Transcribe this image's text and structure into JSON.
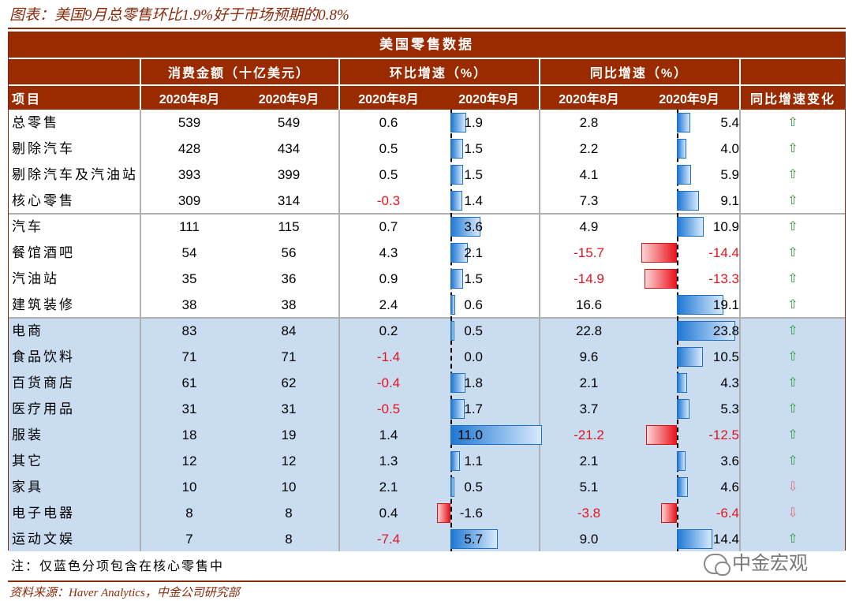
{
  "figure_title": "图表：美国9月总零售环比1.9%好于市场预期的0.8%",
  "table": {
    "main_header": "美国零售数据",
    "group_headers": {
      "amount": "消费金额（十亿美元）",
      "mom": "环比增速（%）",
      "yoy": "同比增速（%）"
    },
    "col_headers": {
      "item": "项目",
      "amt_aug": "2020年8月",
      "amt_sep": "2020年9月",
      "mom_aug": "2020年8月",
      "mom_sep": "2020年9月",
      "yoy_aug": "2020年8月",
      "yoy_sep": "2020年9月",
      "yoy_change": "同比增速变化"
    },
    "rows": [
      {
        "item": "总零售",
        "amt_aug": "539",
        "amt_sep": "549",
        "mom_aug": "0.6",
        "mom_sep": "1.9",
        "yoy_aug": "2.8",
        "yoy_sep": "5.4",
        "change": "up"
      },
      {
        "item": "剔除汽车",
        "amt_aug": "428",
        "amt_sep": "434",
        "mom_aug": "0.5",
        "mom_sep": "1.5",
        "yoy_aug": "2.2",
        "yoy_sep": "4.0",
        "change": "up"
      },
      {
        "item": "剔除汽车及汽油站",
        "amt_aug": "393",
        "amt_sep": "399",
        "mom_aug": "0.5",
        "mom_sep": "1.5",
        "yoy_aug": "4.1",
        "yoy_sep": "5.9",
        "change": "up"
      },
      {
        "item": "核心零售",
        "amt_aug": "309",
        "amt_sep": "314",
        "mom_aug": "-0.3",
        "mom_sep": "1.4",
        "yoy_aug": "7.3",
        "yoy_sep": "9.1",
        "change": "up"
      },
      {
        "item": "汽车",
        "amt_aug": "111",
        "amt_sep": "115",
        "mom_aug": "0.7",
        "mom_sep": "3.6",
        "yoy_aug": "4.9",
        "yoy_sep": "10.9",
        "change": "up"
      },
      {
        "item": "餐馆酒吧",
        "amt_aug": "54",
        "amt_sep": "56",
        "mom_aug": "4.3",
        "mom_sep": "2.1",
        "yoy_aug": "-15.7",
        "yoy_sep": "-14.4",
        "change": "up"
      },
      {
        "item": "汽油站",
        "amt_aug": "35",
        "amt_sep": "36",
        "mom_aug": "0.9",
        "mom_sep": "1.5",
        "yoy_aug": "-14.9",
        "yoy_sep": "-13.3",
        "change": "up"
      },
      {
        "item": "建筑装修",
        "amt_aug": "38",
        "amt_sep": "38",
        "mom_aug": "2.4",
        "mom_sep": "0.6",
        "yoy_aug": "16.6",
        "yoy_sep": "19.1",
        "change": "up"
      },
      {
        "item": "电商",
        "amt_aug": "83",
        "amt_sep": "84",
        "mom_aug": "0.2",
        "mom_sep": "0.5",
        "yoy_aug": "22.8",
        "yoy_sep": "23.8",
        "change": "up"
      },
      {
        "item": "食品饮料",
        "amt_aug": "71",
        "amt_sep": "71",
        "mom_aug": "-1.4",
        "mom_sep": "0.0",
        "yoy_aug": "9.6",
        "yoy_sep": "10.5",
        "change": "up"
      },
      {
        "item": "百货商店",
        "amt_aug": "61",
        "amt_sep": "62",
        "mom_aug": "-0.4",
        "mom_sep": "1.8",
        "yoy_aug": "2.1",
        "yoy_sep": "4.3",
        "change": "up"
      },
      {
        "item": "医疗用品",
        "amt_aug": "31",
        "amt_sep": "31",
        "mom_aug": "-0.5",
        "mom_sep": "1.7",
        "yoy_aug": "3.7",
        "yoy_sep": "5.3",
        "change": "up"
      },
      {
        "item": "服装",
        "amt_aug": "18",
        "amt_sep": "19",
        "mom_aug": "1.4",
        "mom_sep": "11.0",
        "yoy_aug": "-21.2",
        "yoy_sep": "-12.5",
        "change": "up"
      },
      {
        "item": "其它",
        "amt_aug": "12",
        "amt_sep": "12",
        "mom_aug": "1.3",
        "mom_sep": "1.1",
        "yoy_aug": "2.1",
        "yoy_sep": "3.6",
        "change": "up"
      },
      {
        "item": "家具",
        "amt_aug": "10",
        "amt_sep": "10",
        "mom_aug": "2.1",
        "mom_sep": "0.5",
        "yoy_aug": "5.1",
        "yoy_sep": "4.6",
        "change": "down"
      },
      {
        "item": "电子电器",
        "amt_aug": "8",
        "amt_sep": "8",
        "mom_aug": "0.4",
        "mom_sep": "-1.6",
        "yoy_aug": "-3.8",
        "yoy_sep": "-6.4",
        "change": "down"
      },
      {
        "item": "运动文娱",
        "amt_aug": "7",
        "amt_sep": "8",
        "mom_aug": "-7.4",
        "mom_sep": "5.7",
        "yoy_aug": "9.0",
        "yoy_sep": "14.4",
        "change": "up"
      }
    ]
  },
  "note": "注：仅蓝色分项包含在核心零售中",
  "watermark": "中金宏观",
  "source": "资料来源：Haver Analytics，中金公司研究部",
  "colors": {
    "header_bg": "#9a2a00",
    "core_row_bg": "#c9dcf0",
    "negative_text": "#e4141e",
    "bar_positive": "#1f78d4",
    "bar_negative": "#e9141c",
    "arrow_up": "#2f9a3a",
    "arrow_down": "#e07070"
  },
  "icons": {
    "up": "arrow-up-icon",
    "down": "arrow-down-icon"
  }
}
